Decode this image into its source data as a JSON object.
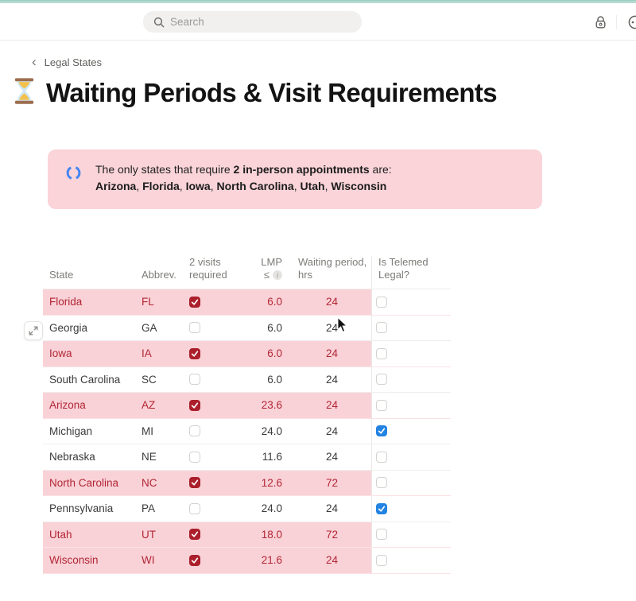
{
  "colors": {
    "teal_strip": "#b4dad1",
    "callout_bg": "#fad4d9",
    "row_highlight_bg": "#f9d2d7",
    "highlight_text": "#b22535",
    "checkbox_red": "#ab1f2b",
    "checkbox_blue": "#2383e2",
    "spinner_blue": "#4285f4"
  },
  "topbar": {
    "search_placeholder": "Search",
    "icons": [
      "search-icon",
      "lock-icon",
      "partial-circle-icon"
    ]
  },
  "breadcrumb": {
    "chevron": "‹",
    "label": "Legal States"
  },
  "page": {
    "emoji": "⌛",
    "title": "Waiting Periods & Visit Requirements"
  },
  "callout": {
    "icon": "spinner-icon",
    "line1_prefix": "The only states that require ",
    "line1_bold": "2 in-person appointments",
    "line1_suffix": " are:",
    "states_bold": [
      "Arizona",
      "Florida",
      "Iowa",
      "North Carolina",
      "Utah",
      "Wisconsin"
    ],
    "separator": ", "
  },
  "table": {
    "headers": {
      "state": "State",
      "abbrev": "Abbrev.",
      "visits_line1": "2 visits",
      "visits_line2": "required",
      "lmp_line1": "LMP",
      "lmp_line2": "≤",
      "info_glyph": "i",
      "waiting_line1": "Waiting period,",
      "waiting_line2": "hrs",
      "telemed_line1": "Is Telemed",
      "telemed_line2": "Legal?"
    },
    "rows": [
      {
        "state": "Florida",
        "abbrev": "FL",
        "two_visits": true,
        "lmp": "6.0",
        "waiting": "24",
        "telemed": false,
        "highlight": true
      },
      {
        "state": "Georgia",
        "abbrev": "GA",
        "two_visits": false,
        "lmp": "6.0",
        "waiting": "24",
        "telemed": false,
        "highlight": false
      },
      {
        "state": "Iowa",
        "abbrev": "IA",
        "two_visits": true,
        "lmp": "6.0",
        "waiting": "24",
        "telemed": false,
        "highlight": true
      },
      {
        "state": "South Carolina",
        "abbrev": "SC",
        "two_visits": false,
        "lmp": "6.0",
        "waiting": "24",
        "telemed": false,
        "highlight": false
      },
      {
        "state": "Arizona",
        "abbrev": "AZ",
        "two_visits": true,
        "lmp": "23.6",
        "waiting": "24",
        "telemed": false,
        "highlight": true
      },
      {
        "state": "Michigan",
        "abbrev": "MI",
        "two_visits": false,
        "lmp": "24.0",
        "waiting": "24",
        "telemed": true,
        "highlight": false
      },
      {
        "state": "Nebraska",
        "abbrev": "NE",
        "two_visits": false,
        "lmp": "11.6",
        "waiting": "24",
        "telemed": false,
        "highlight": false
      },
      {
        "state": "North Carolina",
        "abbrev": "NC",
        "two_visits": true,
        "lmp": "12.6",
        "waiting": "72",
        "telemed": false,
        "highlight": true
      },
      {
        "state": "Pennsylvania",
        "abbrev": "PA",
        "two_visits": false,
        "lmp": "24.0",
        "waiting": "24",
        "telemed": true,
        "highlight": false
      },
      {
        "state": "Utah",
        "abbrev": "UT",
        "two_visits": true,
        "lmp": "18.0",
        "waiting": "72",
        "telemed": false,
        "highlight": true
      },
      {
        "state": "Wisconsin",
        "abbrev": "WI",
        "two_visits": true,
        "lmp": "21.6",
        "waiting": "24",
        "telemed": false,
        "highlight": true
      }
    ]
  }
}
